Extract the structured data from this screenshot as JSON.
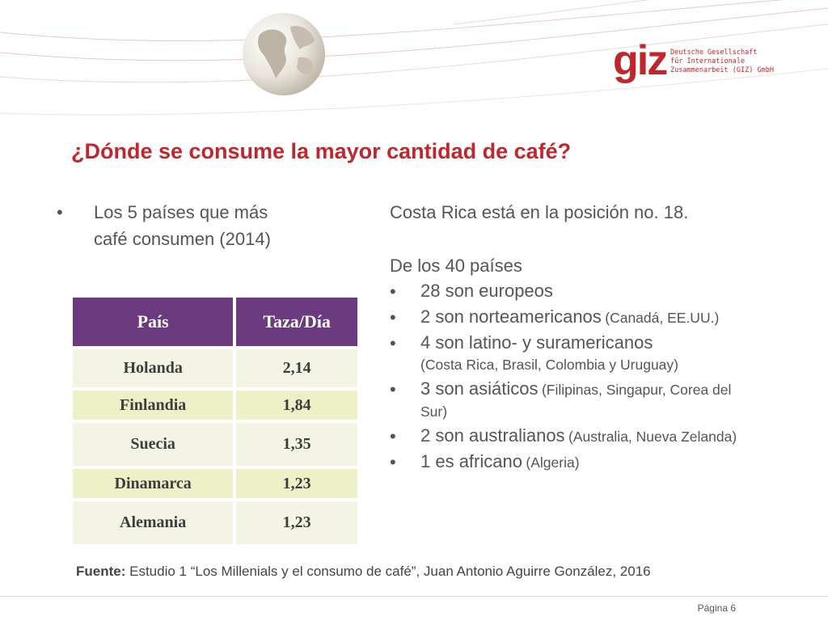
{
  "logo": {
    "mark": "giz",
    "org_lines": "Deutsche Gesellschaft\nfür Internationale\nZusammenarbeit (GIZ) GmbH"
  },
  "title": "¿Dónde se consume la mayor cantidad de café?",
  "left": {
    "bullet": "Los 5 países que más café consumen (2014)"
  },
  "table": {
    "headers": [
      "País",
      "Taza/Día"
    ],
    "rows": [
      [
        "Holanda",
        "2,14"
      ],
      [
        "Finlandia",
        "1,84"
      ],
      [
        "Suecia",
        "1,35"
      ],
      [
        "Dinamarca",
        "1,23"
      ],
      [
        "Alemania",
        "1,23"
      ]
    ]
  },
  "right": {
    "position": "Costa Rica está en la posición no. 18.",
    "intro": "De los 40 países",
    "items": [
      {
        "main": "28 son europeos",
        "detail": ""
      },
      {
        "main": "2 son norteamericanos",
        "detail": "(Canadá, EE.UU.)"
      },
      {
        "main": "4 son latino- y suramericanos",
        "detail": "(Costa Rica, Brasil, Colombia y Uruguay)"
      },
      {
        "main": "3 son asiáticos",
        "detail": "(Filipinas, Singapur, Corea del Sur)"
      },
      {
        "main": "2 son australianos",
        "detail": "(Australia, Nueva Zelanda)"
      },
      {
        "main": "1 es africano",
        "detail": "(Algeria)"
      }
    ]
  },
  "source": {
    "label": "Fuente:",
    "text": "Estudio 1 “Los Millenials y el consumo de café”, Juan Antonio Aguirre González, 2016"
  },
  "footer": {
    "page": "Página 6"
  },
  "colors": {
    "title": "#c0272d",
    "logo": "#c0272d",
    "table_header": "#6b3a7f",
    "row_light": "#f4f4e4",
    "row_dark": "#eef0c8"
  }
}
